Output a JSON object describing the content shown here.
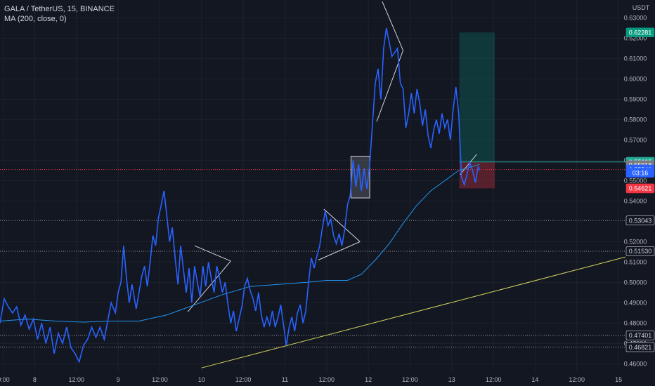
{
  "legend": {
    "title": "GALA / TetherUS, 15, BINANCE",
    "indicator": "MA (200, close, 0)"
  },
  "currency": "USDT",
  "chart_data": {
    "type": "line",
    "title": "GALA / TetherUS, 15, BINANCE",
    "ylim": [
      0.456,
      0.636
    ],
    "xlim": [
      0,
      900
    ],
    "grid": true,
    "x_ticks": [
      {
        "label": "0:00",
        "x": 5
      },
      {
        "label": "8",
        "x": 50
      },
      {
        "label": "12:00",
        "x": 110
      },
      {
        "label": "9",
        "x": 170
      },
      {
        "label": "12:00",
        "x": 230
      },
      {
        "label": "10",
        "x": 290
      },
      {
        "label": "12:00",
        "x": 350
      },
      {
        "label": "11",
        "x": 410
      },
      {
        "label": "12:00",
        "x": 470
      },
      {
        "label": "12",
        "x": 530
      },
      {
        "label": "12:00",
        "x": 590
      },
      {
        "label": "13",
        "x": 650
      },
      {
        "label": "12:00",
        "x": 710
      },
      {
        "label": "14",
        "x": 770
      },
      {
        "label": "12:00",
        "x": 830
      },
      {
        "label": "15",
        "x": 890
      }
    ],
    "y_ticks": [
      "0.63000",
      "0.62000",
      "0.61000",
      "0.60000",
      "0.59000",
      "0.58000",
      "0.57000",
      "0.56000",
      "0.55000",
      "0.54000",
      "0.52000",
      "0.51000",
      "0.50000",
      "0.49000",
      "0.48000",
      "0.47000",
      "0.46000"
    ],
    "price_series": {
      "name": "GALA / TetherUS",
      "color": "#2962ff",
      "points": [
        [
          0,
          0.48
        ],
        [
          6,
          0.492
        ],
        [
          12,
          0.488
        ],
        [
          18,
          0.485
        ],
        [
          24,
          0.488
        ],
        [
          30,
          0.479
        ],
        [
          36,
          0.484
        ],
        [
          42,
          0.477
        ],
        [
          48,
          0.482
        ],
        [
          54,
          0.472
        ],
        [
          60,
          0.48
        ],
        [
          66,
          0.47
        ],
        [
          72,
          0.478
        ],
        [
          78,
          0.465
        ],
        [
          84,
          0.475
        ],
        [
          90,
          0.47
        ],
        [
          96,
          0.478
        ],
        [
          102,
          0.468
        ],
        [
          108,
          0.465
        ],
        [
          114,
          0.461
        ],
        [
          120,
          0.469
        ],
        [
          126,
          0.472
        ],
        [
          132,
          0.478
        ],
        [
          138,
          0.473
        ],
        [
          144,
          0.478
        ],
        [
          150,
          0.472
        ],
        [
          156,
          0.483
        ],
        [
          160,
          0.49
        ],
        [
          166,
          0.485
        ],
        [
          170,
          0.495
        ],
        [
          174,
          0.5
        ],
        [
          178,
          0.518
        ],
        [
          182,
          0.502
        ],
        [
          186,
          0.49
        ],
        [
          190,
          0.499
        ],
        [
          196,
          0.487
        ],
        [
          200,
          0.495
        ],
        [
          204,
          0.503
        ],
        [
          208,
          0.508
        ],
        [
          212,
          0.498
        ],
        [
          216,
          0.51
        ],
        [
          220,
          0.523
        ],
        [
          224,
          0.518
        ],
        [
          228,
          0.532
        ],
        [
          232,
          0.538
        ],
        [
          236,
          0.545
        ],
        [
          240,
          0.533
        ],
        [
          244,
          0.52
        ],
        [
          248,
          0.527
        ],
        [
          252,
          0.512
        ],
        [
          256,
          0.499
        ],
        [
          260,
          0.518
        ],
        [
          264,
          0.506
        ],
        [
          268,
          0.495
        ],
        [
          272,
          0.507
        ],
        [
          276,
          0.49
        ],
        [
          280,
          0.508
        ],
        [
          284,
          0.5
        ],
        [
          288,
          0.493
        ],
        [
          292,
          0.508
        ],
        [
          296,
          0.498
        ],
        [
          300,
          0.51
        ],
        [
          304,
          0.502
        ],
        [
          308,
          0.495
        ],
        [
          312,
          0.508
        ],
        [
          316,
          0.502
        ],
        [
          320,
          0.495
        ],
        [
          324,
          0.5
        ],
        [
          328,
          0.489
        ],
        [
          332,
          0.48
        ],
        [
          336,
          0.486
        ],
        [
          340,
          0.476
        ],
        [
          344,
          0.482
        ],
        [
          348,
          0.488
        ],
        [
          352,
          0.498
        ],
        [
          356,
          0.502
        ],
        [
          360,
          0.496
        ],
        [
          364,
          0.492
        ],
        [
          368,
          0.486
        ],
        [
          372,
          0.495
        ],
        [
          376,
          0.484
        ],
        [
          380,
          0.478
        ],
        [
          384,
          0.483
        ],
        [
          388,
          0.479
        ],
        [
          392,
          0.486
        ],
        [
          396,
          0.478
        ],
        [
          400,
          0.483
        ],
        [
          404,
          0.489
        ],
        [
          408,
          0.479
        ],
        [
          412,
          0.469
        ],
        [
          416,
          0.478
        ],
        [
          420,
          0.483
        ],
        [
          424,
          0.476
        ],
        [
          428,
          0.485
        ],
        [
          432,
          0.489
        ],
        [
          436,
          0.48
        ],
        [
          440,
          0.486
        ],
        [
          444,
          0.5
        ],
        [
          448,
          0.512
        ],
        [
          452,
          0.507
        ],
        [
          456,
          0.513
        ],
        [
          460,
          0.518
        ],
        [
          464,
          0.527
        ],
        [
          468,
          0.535
        ],
        [
          472,
          0.528
        ],
        [
          476,
          0.531
        ],
        [
          480,
          0.523
        ],
        [
          484,
          0.519
        ],
        [
          488,
          0.524
        ],
        [
          492,
          0.518
        ],
        [
          496,
          0.526
        ],
        [
          500,
          0.538
        ],
        [
          504,
          0.543
        ],
        [
          508,
          0.56
        ],
        [
          512,
          0.547
        ],
        [
          516,
          0.558
        ],
        [
          520,
          0.545
        ],
        [
          524,
          0.556
        ],
        [
          528,
          0.546
        ],
        [
          532,
          0.558
        ],
        [
          536,
          0.578
        ],
        [
          540,
          0.598
        ],
        [
          544,
          0.605
        ],
        [
          548,
          0.59
        ],
        [
          552,
          0.615
        ],
        [
          556,
          0.625
        ],
        [
          560,
          0.618
        ],
        [
          564,
          0.611
        ],
        [
          568,
          0.613
        ],
        [
          572,
          0.615
        ],
        [
          576,
          0.598
        ],
        [
          580,
          0.595
        ],
        [
          584,
          0.576
        ],
        [
          588,
          0.583
        ],
        [
          592,
          0.593
        ],
        [
          596,
          0.583
        ],
        [
          600,
          0.595
        ],
        [
          604,
          0.588
        ],
        [
          608,
          0.577
        ],
        [
          612,
          0.585
        ],
        [
          616,
          0.572
        ],
        [
          620,
          0.566
        ],
        [
          624,
          0.575
        ],
        [
          628,
          0.58
        ],
        [
          632,
          0.573
        ],
        [
          636,
          0.583
        ],
        [
          640,
          0.576
        ],
        [
          644,
          0.58
        ],
        [
          648,
          0.57
        ],
        [
          652,
          0.585
        ],
        [
          656,
          0.596
        ],
        [
          660,
          0.583
        ],
        [
          664,
          0.552
        ],
        [
          668,
          0.548
        ],
        [
          672,
          0.553
        ],
        [
          676,
          0.559
        ],
        [
          680,
          0.555
        ],
        [
          684,
          0.549
        ],
        [
          688,
          0.557
        ],
        [
          690,
          0.555
        ]
      ]
    },
    "ma_series": {
      "name": "MA (200, close, 0)",
      "color": "#2196f3",
      "points": [
        [
          0,
          0.481
        ],
        [
          40,
          0.482
        ],
        [
          80,
          0.481
        ],
        [
          120,
          0.4805
        ],
        [
          160,
          0.481
        ],
        [
          200,
          0.481
        ],
        [
          240,
          0.484
        ],
        [
          280,
          0.489
        ],
        [
          320,
          0.494
        ],
        [
          360,
          0.498
        ],
        [
          400,
          0.499
        ],
        [
          440,
          0.5
        ],
        [
          470,
          0.501
        ],
        [
          500,
          0.501
        ],
        [
          520,
          0.504
        ],
        [
          540,
          0.511
        ],
        [
          560,
          0.519
        ],
        [
          580,
          0.529
        ],
        [
          600,
          0.538
        ],
        [
          620,
          0.545
        ],
        [
          640,
          0.55
        ],
        [
          660,
          0.555
        ],
        [
          680,
          0.557
        ],
        [
          690,
          0.558
        ]
      ]
    },
    "price_labels": [
      {
        "value": "0.62281",
        "bg": "#089981",
        "fg": "#ffffff",
        "v": 0.62281
      },
      {
        "value": "0.55925",
        "bg": "#22ab94",
        "fg": "#ffffff",
        "v": 0.55925
      },
      {
        "value": "0.55918",
        "bg": "#787b86",
        "fg": "#ffffff",
        "v": 0.5576
      },
      {
        "value": "0.55546",
        "bg": "#2962ff",
        "fg": "#ffffff",
        "v": 0.55546
      },
      {
        "value": "03:16",
        "bg": "#2962ff",
        "fg": "#ffffff",
        "v": 0.5539
      },
      {
        "value": "0.54621",
        "bg": "#f23645",
        "fg": "#ffffff",
        "v": 0.54621
      },
      {
        "value": "0.53043",
        "bg": "#131722",
        "fg": "#d1d4dc",
        "v": 0.53043
      },
      {
        "value": "0.51530",
        "bg": "#131722",
        "fg": "#d1d4dc",
        "v": 0.5153
      },
      {
        "value": "0.47401",
        "bg": "#131722",
        "fg": "#d1d4dc",
        "v": 0.47401
      },
      {
        "value": "0.46821",
        "bg": "#131722",
        "fg": "#d1d4dc",
        "v": 0.46821
      }
    ],
    "horizontal_levels": [
      0.53043,
      0.5153,
      0.47401,
      0.46821
    ],
    "current_price": 0.55546,
    "trendline": {
      "color": "#d4d45c",
      "from": [
        290,
        0.458
      ],
      "to": [
        900,
        0.5125
      ]
    },
    "position": {
      "entry": 0.55918,
      "target": 0.62281,
      "stop": 0.54621,
      "x0": 661,
      "x1": 712
    },
    "boxes": [
      {
        "x0": 505,
        "x1": 532,
        "top": 0.562,
        "bottom": 0.5415
      }
    ],
    "pattern_lines": [
      [
        [
          270,
          0.4855
        ],
        [
          332,
          0.5105
        ]
      ],
      [
        [
          280,
          0.518
        ],
        [
          332,
          0.5105
        ]
      ],
      [
        [
          458,
          0.511
        ],
        [
          518,
          0.52
        ]
      ],
      [
        [
          466,
          0.536
        ],
        [
          518,
          0.52
        ]
      ],
      [
        [
          542,
          0.579
        ],
        [
          580,
          0.614
        ]
      ],
      [
        [
          550,
          0.638
        ],
        [
          580,
          0.614
        ]
      ],
      [
        [
          662,
          0.553
        ],
        [
          686,
          0.563
        ]
      ]
    ]
  }
}
